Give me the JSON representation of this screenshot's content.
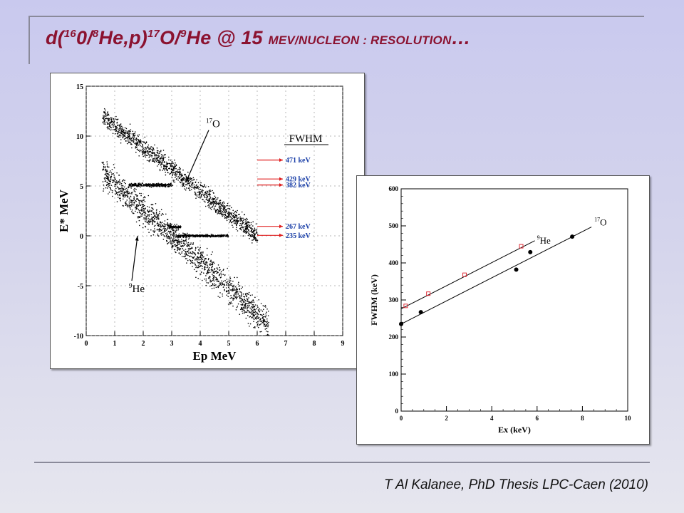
{
  "slide": {
    "title": {
      "d_open": "d(",
      "sup_a": "16",
      "mid_a": "0/",
      "sup_b": "8",
      "mid_b": "He,p)",
      "sup_c": "17",
      "mid_c": "O/",
      "sup_d": "9",
      "mid_d": "He @ 15 ",
      "smallcaps": "MEV/NUCLEON : RESOLUTION",
      "ellipsis": "…"
    },
    "citation": "T Al Kalanee, PhD Thesis LPC-Caen (2010)"
  },
  "chart_data": [
    {
      "type": "scatter",
      "xlabel": "E_p MeV",
      "ylabel": "E* MeV",
      "xlim": [
        0,
        9
      ],
      "ylim": [
        -10,
        15
      ],
      "xticks": [
        0,
        1,
        2,
        3,
        4,
        5,
        6,
        7,
        8,
        9
      ],
      "yticks": [
        -10,
        -5,
        0,
        5,
        10,
        15
      ],
      "legend_title": "FWHM",
      "fwhm_labels": [
        {
          "label": "471 keV",
          "y": 7.6
        },
        {
          "label": "429 keV",
          "y": 5.7
        },
        {
          "label": "382 keV",
          "y": 5.1
        },
        {
          "label": "267 keV",
          "y": 0.95
        },
        {
          "label": "235 keV",
          "y": 0.05
        }
      ],
      "annotations": [
        {
          "nucleus": "17",
          "symbol": "O",
          "from": [
            4.3,
            10.6
          ],
          "to": [
            3.5,
            5.4
          ]
        },
        {
          "nucleus": "9",
          "symbol": "He",
          "from": [
            1.6,
            -4.5
          ],
          "to": [
            1.8,
            0.0
          ]
        }
      ],
      "bands": [
        {
          "name": "17O upper locus",
          "from": [
            0.6,
            12.0
          ],
          "to": [
            6.0,
            0.0
          ],
          "spread": 0.8
        },
        {
          "name": "9He locus",
          "from": [
            0.6,
            6.3
          ],
          "to": [
            6.4,
            -8.8
          ],
          "spread": 1.3
        },
        {
          "name": "17O ground state",
          "from": [
            3.2,
            0.0
          ],
          "to": [
            5.0,
            0.0
          ],
          "spread": 0.1
        },
        {
          "name": "17O 0.87 MeV",
          "from": [
            2.9,
            0.9
          ],
          "to": [
            3.3,
            0.9
          ],
          "spread": 0.1
        },
        {
          "name": "17O 5 MeV",
          "from": [
            1.5,
            5.1
          ],
          "to": [
            3.0,
            5.1
          ],
          "spread": 0.15
        }
      ]
    },
    {
      "type": "scatter",
      "xlabel": "Ex (keV)",
      "ylabel": "FWHM (keV)",
      "xlim": [
        0,
        10
      ],
      "ylim": [
        0,
        600
      ],
      "xticks": [
        0,
        2,
        4,
        6,
        8,
        10
      ],
      "yticks": [
        0,
        100,
        200,
        300,
        400,
        500,
        600
      ],
      "series": [
        {
          "name": "9He",
          "sup": "9",
          "symbol": "He",
          "color": "#e0303a",
          "marker": "open-square",
          "x": [
            0.2,
            1.2,
            2.8,
            5.3
          ],
          "y": [
            284,
            317,
            368,
            445
          ],
          "fit": {
            "x": [
              0.0,
              5.9
            ],
            "y": [
              276,
              460
            ]
          }
        },
        {
          "name": "17O",
          "sup": "17",
          "symbol": "O",
          "color": "#000000",
          "marker": "filled-circle",
          "x": [
            0.0,
            0.87,
            5.08,
            5.7,
            7.55
          ],
          "y": [
            235,
            267,
            382,
            429,
            471
          ],
          "fit": {
            "x": [
              0.0,
              8.4
            ],
            "y": [
              235,
              497
            ]
          }
        }
      ]
    }
  ]
}
